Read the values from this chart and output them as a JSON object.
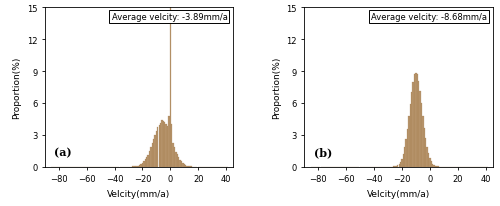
{
  "subplot_a": {
    "label": "(a)",
    "annotation": "Average velcity: -3.89mm/a",
    "avg": -3.89,
    "xlim": [
      -90,
      45
    ],
    "xticks": [
      -80,
      -60,
      -40,
      -20,
      0,
      20,
      40
    ],
    "ylim": [
      0,
      15
    ],
    "yticks": [
      0,
      3,
      6,
      9,
      12,
      15
    ]
  },
  "subplot_b": {
    "label": "(b)",
    "annotation": "Average velcity: -8.68mm/a",
    "avg": -8.68,
    "xlim": [
      -90,
      45
    ],
    "xticks": [
      -80,
      -60,
      -40,
      -20,
      0,
      20,
      40
    ],
    "ylim": [
      0,
      15
    ],
    "yticks": [
      0,
      3,
      6,
      9,
      12,
      15
    ]
  },
  "xlabel": "Velcity(mm/a)",
  "ylabel": "Proportion(%)",
  "bar_color": "#b8966e",
  "bar_edgecolor": "#a07848",
  "bin_width": 1.0
}
